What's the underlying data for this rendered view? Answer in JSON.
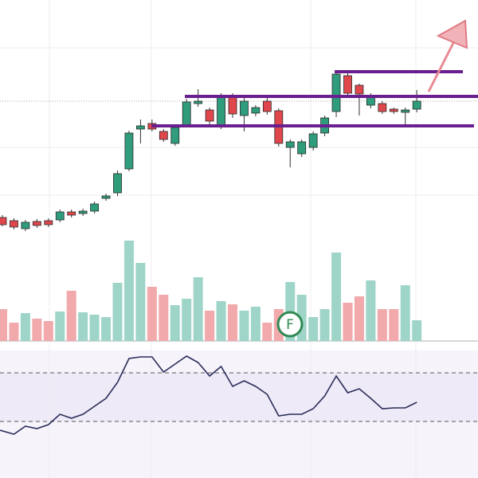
{
  "chart_data": {
    "type": "candlestick",
    "event_marker": "F",
    "up_color": "#2f9c7c",
    "down_color": "#e0474c",
    "volume_up_color": "#9fd5c8",
    "volume_down_color": "#f1a9ab",
    "oscillator_color": "#2a2d5a",
    "ylim": [
      0,
      300
    ],
    "volume_ylim": [
      0,
      130
    ],
    "oscillator_ylim": [
      0,
      160
    ],
    "open": [
      27,
      23,
      13,
      22,
      23,
      24,
      34,
      32,
      35,
      51,
      58,
      88,
      138,
      145,
      135,
      120,
      143,
      170,
      162,
      142,
      179,
      155,
      158,
      173,
      161,
      115,
      107,
      115,
      133,
      160,
      205,
      193,
      168,
      170,
      163,
      159,
      163
    ],
    "high": [
      30,
      26,
      24,
      25,
      26,
      37,
      37,
      38,
      47,
      57,
      86,
      136,
      150,
      150,
      138,
      144,
      176,
      188,
      165,
      183,
      183,
      177,
      168,
      177,
      164,
      125,
      125,
      135,
      155,
      210,
      208,
      195,
      183,
      173,
      165,
      165,
      187
    ],
    "low": [
      16,
      12,
      10,
      14,
      15,
      21,
      27,
      29,
      32,
      48,
      54,
      85,
      120,
      135,
      122,
      117,
      140,
      166,
      144,
      138,
      152,
      135,
      154,
      156,
      116,
      90,
      103,
      111,
      129,
      153,
      178,
      155,
      164,
      157,
      157,
      142,
      159
    ],
    "close": [
      18,
      15,
      21,
      17,
      18,
      34,
      30,
      35,
      44,
      54,
      82,
      133,
      142,
      138,
      125,
      140,
      172,
      173,
      148,
      179,
      157,
      173,
      165,
      160,
      120,
      122,
      122,
      132,
      152,
      207,
      183,
      182,
      180,
      160,
      160,
      162,
      173
    ],
    "volume": [
      40,
      23,
      35,
      28,
      25,
      37,
      63,
      36,
      33,
      30,
      73,
      126,
      98,
      68,
      58,
      45,
      53,
      80,
      38,
      50,
      46,
      38,
      43,
      23,
      40,
      74,
      58,
      30,
      40,
      111,
      48,
      56,
      76,
      40,
      40,
      70,
      26
    ],
    "oscillator": [
      60,
      55,
      65,
      62,
      67,
      80,
      75,
      80,
      90,
      100,
      120,
      150,
      152,
      152,
      133,
      143,
      153,
      145,
      128,
      140,
      115,
      122,
      115,
      105,
      78,
      80,
      80,
      87,
      103,
      128,
      107,
      112,
      100,
      87,
      88,
      88,
      95
    ]
  }
}
